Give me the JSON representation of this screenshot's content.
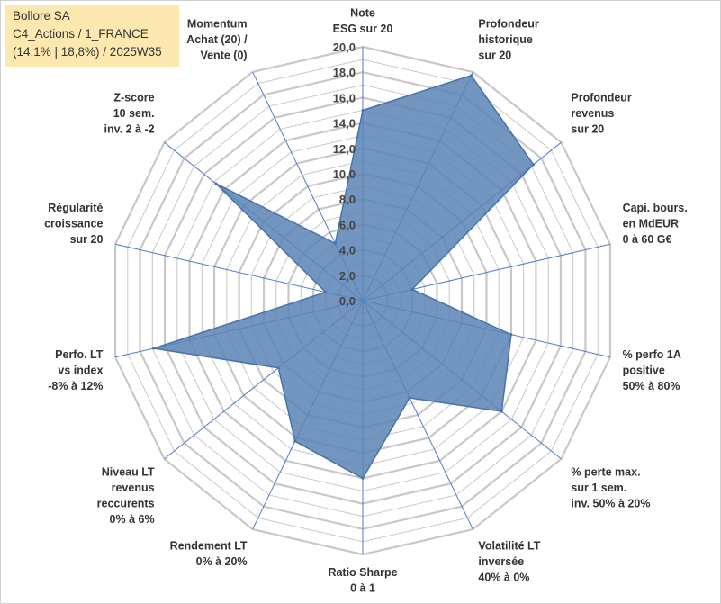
{
  "title_box": {
    "line1": "Bollore SA",
    "line2": "C4_Actions / 1_FRANCE",
    "line3": "(14,1% | 18,8%) / 2025W35"
  },
  "chart_data": {
    "type": "radar",
    "r_range": [
      0,
      20
    ],
    "r_ticks": [
      "0,0",
      "2,0",
      "4,0",
      "6,0",
      "8,0",
      "10,0",
      "12,0",
      "14,0",
      "16,0",
      "18,0",
      "20,0"
    ],
    "grid": true,
    "colors": {
      "fill": "#5b84b6",
      "stroke": "#4a72a8",
      "grid": "#c8c8c8",
      "spoke": "#4f7cc4"
    },
    "axes": [
      {
        "label": [
          "Note",
          "ESG sur 20"
        ],
        "value": 15.0
      },
      {
        "label": [
          "Profondeur",
          "historique",
          "sur 20"
        ],
        "value": 19.7
      },
      {
        "label": [
          "Profondeur",
          "revenus",
          "sur 20"
        ],
        "value": 17.2
      },
      {
        "label": [
          "Capi. bours.",
          "en MdEUR",
          "0 à 60 G€"
        ],
        "value": 4.0
      },
      {
        "label": [
          "% perfo 1A",
          "positive",
          "50% à 80%"
        ],
        "value": 12.0
      },
      {
        "label": [
          "% perte max.",
          "sur 1 sem.",
          "inv. 50% à 20%"
        ],
        "value": 14.0
      },
      {
        "label": [
          "Volatilité LT",
          "inversée",
          "40% à 0%"
        ],
        "value": 8.5
      },
      {
        "label": [
          "Ratio Sharpe",
          "0 à 1"
        ],
        "value": 14.0
      },
      {
        "label": [
          "Rendement LT",
          "0% à 20%"
        ],
        "value": 12.3
      },
      {
        "label": [
          "Niveau LT",
          "revenus",
          "reccurents",
          "0% à 6%"
        ],
        "value": 8.5
      },
      {
        "label": [
          "Perfo. LT",
          "vs index",
          "-8% à 12%"
        ],
        "value": 16.9
      },
      {
        "label": [
          "Régularité",
          "croissance",
          "sur 20"
        ],
        "value": 3.0
      },
      {
        "label": [
          "Z-score",
          "10 sem.",
          "inv. 2 à -2"
        ],
        "value": 14.8
      },
      {
        "label": [
          "Momentum",
          "Achat (20) /",
          "Vente (0)"
        ],
        "value": 5.0
      }
    ]
  }
}
